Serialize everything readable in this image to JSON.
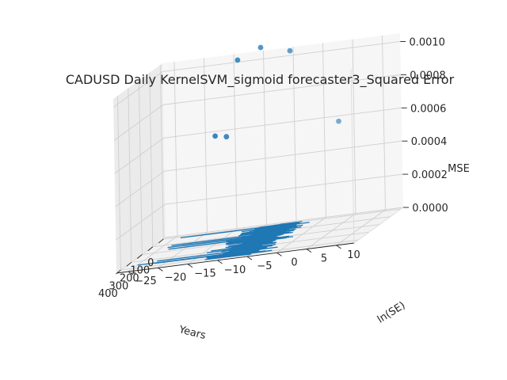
{
  "chart_data": {
    "type": "scatter",
    "projection": "3d",
    "title": "CADUSD Daily KernelSVM_sigmoid forecaster3_Squared Error",
    "xlabel": "Years",
    "ylabel": "ln(SE)",
    "zlabel": "MSE",
    "xlim": [
      -20,
      440
    ],
    "ylim": [
      -27,
      13
    ],
    "zlim": [
      0,
      0.00105
    ],
    "x_ticks": [
      "0",
      "100",
      "200",
      "300",
      "400"
    ],
    "y_ticks": [
      "−25",
      "−20",
      "−15",
      "−10",
      "−5",
      "0",
      "5",
      "10"
    ],
    "z_ticks": [
      "0.0000",
      "0.0002",
      "0.0004",
      "0.0006",
      "0.0008",
      "0.0010"
    ],
    "grid": true,
    "series": [
      {
        "kind": "scatter",
        "color": "#1f77b4",
        "points": [
          {
            "x": 0,
            "y": -14,
            "z": 0.00102
          },
          {
            "x": 5,
            "y": -10,
            "z": 0.00108
          },
          {
            "x": 10,
            "y": -5,
            "z": 0.00104
          },
          {
            "x": 0,
            "y": -18,
            "z": 0.00058
          },
          {
            "x": 6,
            "y": -16,
            "z": 0.00057
          },
          {
            "x": 12,
            "y": 3,
            "z": 0.00058
          }
        ]
      },
      {
        "kind": "line",
        "color": "#1f77b4",
        "z": 0,
        "x_range": [
          0,
          410
        ],
        "ln_se_center": -7.5,
        "ln_se_spread": 5,
        "ln_se_min": -25,
        "samples": 420
      }
    ]
  }
}
